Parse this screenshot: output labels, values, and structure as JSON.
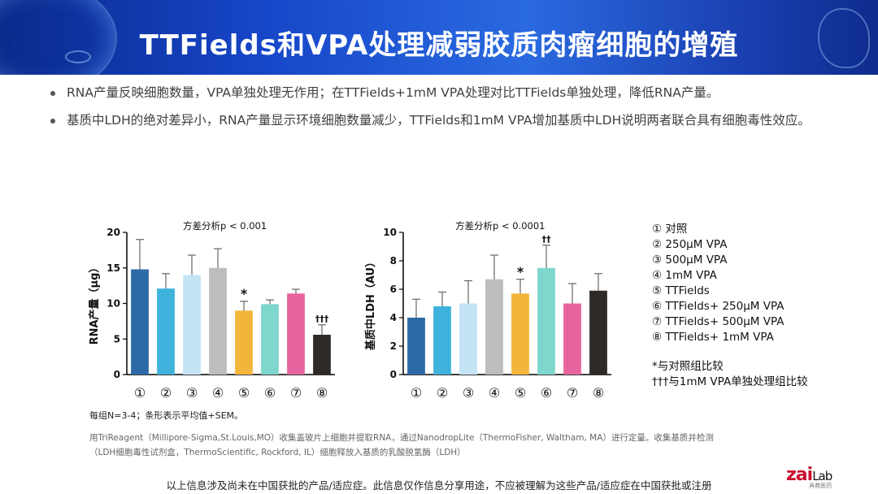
{
  "slide": {
    "title": "TTFields和VPA处理减弱胶质肉瘤细胞的增殖",
    "bullets": [
      "RNA产量反映细胞数量，VPA单独处理无作用；在TTFields+1mM  VPA处理对比TTFields单独处理，降低RNA产量。",
      "基质中LDH的绝对差异小，RNA产量显示环境细胞数量减少，TTFields和1mM  VPA增加基质中LDH说明两者联合具有细胞毒性效应。"
    ],
    "legend": [
      "① 对照",
      "② 250μM VPA",
      "③ 500μM VPA",
      "④ 1mM VPA",
      "⑤ TTFields",
      "⑥ TTFields+ 250μM VPA",
      "⑦ TTFields+ 500μM VPA",
      "⑧ TTFields+ 1mM VPA"
    ],
    "notes": [
      "*与对照组比较",
      "†††与1mM VPA单独处理组比较"
    ],
    "footnote": "每组N=3-4；条形表示平均值+SEM。",
    "refs": "用TriReagent（Millipore-Sigma,St.Louis,MO）收集盖玻片上细胞并提取RNA，通过NanodropLite（ThermoFisher, Waltham, MA）进行定量。收集基质并检测（LDH细胞毒性试剂盒，ThermoScientific, Rockford, IL）细胞释放入基质的乳酸脱氢酶（LDH）",
    "disclaimer": "以上信息涉及尚未在中国获批的产品/适应症。此信息仅作信息分享用途，不应被理解为这些产品/适应症在中国获批或注册",
    "logo": {
      "main_a": "zai",
      "main_b": "Lab",
      "sub": "再鼎医药"
    }
  },
  "colors": [
    "#2b6aa6",
    "#3fb3dc",
    "#c4e4f6",
    "#bdbdbd",
    "#f2b63c",
    "#7ed6cc",
    "#e8649e",
    "#2f2a27"
  ],
  "chart_data": [
    {
      "type": "bar",
      "title": "方差分析p < 0.001",
      "ylabel": "RNA产量（μg）",
      "xlabel": "",
      "categories": [
        "①",
        "②",
        "③",
        "④",
        "⑤",
        "⑥",
        "⑦",
        "⑧"
      ],
      "values": [
        14.8,
        12.1,
        14.0,
        15.0,
        9.0,
        9.9,
        11.4,
        5.6
      ],
      "errors": [
        4.2,
        2.1,
        2.8,
        2.7,
        1.3,
        0.6,
        0.6,
        1.4
      ],
      "annotations": [
        "",
        "",
        "",
        "",
        "*",
        "",
        "",
        "†††"
      ],
      "ylim": [
        0,
        20
      ],
      "yticks": [
        0,
        5,
        10,
        15,
        20
      ],
      "grid": false
    },
    {
      "type": "bar",
      "title": "方差分析p < 0.0001",
      "ylabel": "基质中LDH（AU）",
      "xlabel": "",
      "categories": [
        "①",
        "②",
        "③",
        "④",
        "⑤",
        "⑥",
        "⑦",
        "⑧"
      ],
      "values": [
        4.0,
        4.8,
        5.0,
        6.7,
        5.7,
        7.5,
        5.0,
        5.9
      ],
      "errors": [
        1.3,
        1.0,
        1.6,
        1.7,
        1.0,
        1.6,
        1.4,
        1.2
      ],
      "annotations": [
        "",
        "",
        "",
        "",
        "*",
        "††",
        "",
        ""
      ],
      "ylim": [
        0,
        10
      ],
      "yticks": [
        0,
        2,
        4,
        6,
        8,
        10
      ],
      "grid": false
    }
  ]
}
